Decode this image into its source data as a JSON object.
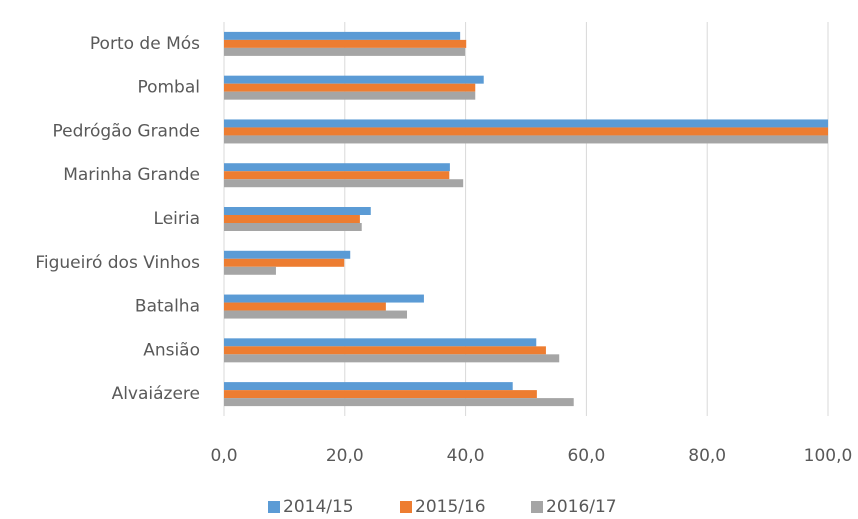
{
  "chart_data": {
    "type": "hbar",
    "categories": [
      "Porto de Mós",
      "Pombal",
      "Pedrógão Grande",
      "Marinha Grande",
      "Leiria",
      "Figueiró dos Vinhos",
      "Batalha",
      "Ansião",
      "Alvaiázere"
    ],
    "series": [
      {
        "name": "2014/15",
        "color": "#5b9bd5",
        "values": [
          39.1,
          43.0,
          100,
          37.4,
          24.3,
          20.9,
          33.1,
          51.7,
          47.8
        ]
      },
      {
        "name": "2015/16",
        "color": "#ed7d31",
        "values": [
          40.1,
          41.6,
          100,
          37.3,
          22.5,
          19.9,
          26.8,
          53.3,
          51.8
        ]
      },
      {
        "name": "2016/17",
        "color": "#a5a5a5",
        "values": [
          39.9,
          41.6,
          100,
          39.6,
          22.8,
          8.6,
          30.3,
          55.5,
          57.9
        ]
      }
    ],
    "xlim": [
      0,
      100
    ],
    "xticks": [
      {
        "value": 0,
        "label": "0,0"
      },
      {
        "value": 20,
        "label": "20,0"
      },
      {
        "value": 40,
        "label": "40,0"
      },
      {
        "value": 60,
        "label": "60,0"
      },
      {
        "value": 80,
        "label": "80,0"
      },
      {
        "value": 100,
        "label": "100,0"
      }
    ],
    "grid": true,
    "legend": "bottom"
  }
}
